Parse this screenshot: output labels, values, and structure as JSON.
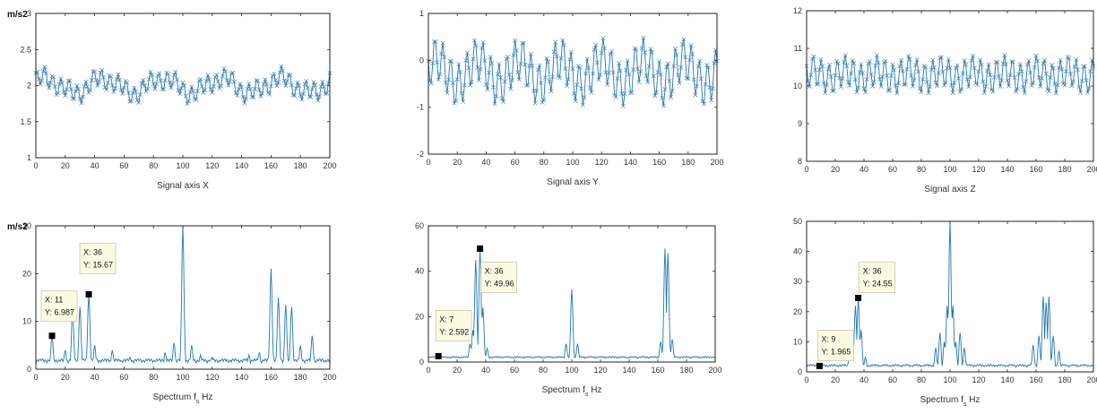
{
  "figure": {
    "line_color": "#1f77b4",
    "marker_color": "#4a86b8"
  },
  "chart_data": [
    {
      "id": "signal-x",
      "type": "line",
      "marker": "x",
      "xlabel": "Signal axis X",
      "ylabel": "m/s2",
      "xlim": [
        0,
        200
      ],
      "ylim": [
        1,
        3
      ],
      "xticks": [
        0,
        20,
        40,
        60,
        80,
        100,
        120,
        140,
        160,
        180,
        200
      ],
      "yticks": [
        1,
        1.5,
        2,
        2.5,
        3
      ],
      "ytick_labels": [
        "1",
        "1.5",
        "2",
        "2.5",
        "3"
      ],
      "signal": {
        "n": 201,
        "mean": 2.0,
        "components": [
          [
            0.05,
            11,
            0.2
          ],
          [
            0.12,
            36,
            1.1
          ],
          [
            0.48,
            100,
            0
          ],
          [
            0.1,
            5,
            0.6
          ]
        ]
      },
      "datatips": []
    },
    {
      "id": "signal-y",
      "type": "line",
      "marker": "x",
      "xlabel": "Signal axis Y",
      "ylabel": "",
      "xlim": [
        0,
        200
      ],
      "ylim": [
        -2,
        1
      ],
      "xticks": [
        0,
        20,
        40,
        60,
        80,
        100,
        120,
        140,
        160,
        180,
        200
      ],
      "yticks": [
        -2,
        -1,
        0,
        1
      ],
      "ytick_labels": [
        "-2",
        "-1",
        "0",
        "1"
      ],
      "signal": {
        "n": 201,
        "mean": -0.25,
        "components": [
          [
            0.45,
            36,
            2.8
          ],
          [
            0.5,
            100,
            0
          ],
          [
            0.28,
            7,
            0.3
          ]
        ]
      },
      "datatips": []
    },
    {
      "id": "signal-z",
      "type": "line",
      "marker": "x",
      "xlabel": "Signal axis Z",
      "ylabel": "",
      "xlim": [
        0,
        200
      ],
      "ylim": [
        8,
        12
      ],
      "xticks": [
        0,
        20,
        40,
        60,
        80,
        100,
        120,
        140,
        160,
        180,
        200
      ],
      "yticks": [
        8,
        9,
        10,
        11,
        12
      ],
      "ytick_labels": [
        "8",
        "9",
        "10",
        "11",
        "12"
      ],
      "signal": {
        "n": 201,
        "mean": 10.3,
        "components": [
          [
            0.4,
            36,
            2.6
          ],
          [
            0.42,
            100,
            0
          ],
          [
            0.12,
            9,
            0.2
          ]
        ]
      },
      "datatips": []
    },
    {
      "id": "spectrum-x",
      "type": "line",
      "marker": "",
      "xlabel": "Spectrum f",
      "xlabel_sub": "s",
      "xlabel_unit": "Hz",
      "ylabel": "m/s2",
      "xlim": [
        0,
        200
      ],
      "ylim": [
        0,
        30
      ],
      "xticks": [
        0,
        20,
        40,
        60,
        80,
        100,
        120,
        140,
        160,
        180,
        200
      ],
      "yticks": [
        0,
        10,
        20,
        30
      ],
      "ytick_labels": [
        "0",
        "10",
        "20",
        "30"
      ],
      "spectrum": {
        "base": 1.2,
        "peaks": [
          [
            11,
            6.987
          ],
          [
            20,
            4
          ],
          [
            25,
            12.5
          ],
          [
            30,
            13
          ],
          [
            36,
            15.67
          ],
          [
            40,
            5
          ],
          [
            52,
            4
          ],
          [
            64,
            2.5
          ],
          [
            88,
            3.5
          ],
          [
            94,
            5.5
          ],
          [
            100,
            30
          ],
          [
            106,
            5
          ],
          [
            112,
            3
          ],
          [
            120,
            2.5
          ],
          [
            130,
            2
          ],
          [
            145,
            3
          ],
          [
            152,
            3.5
          ],
          [
            160,
            21
          ],
          [
            165,
            15
          ],
          [
            170,
            13.5
          ],
          [
            174,
            13
          ],
          [
            180,
            5
          ],
          [
            188,
            7
          ]
        ]
      },
      "datatips": [
        {
          "x": 11,
          "y": 6.987,
          "label_x": "X: 11",
          "label_y": "Y: 6.987"
        },
        {
          "x": 36,
          "y": 15.67,
          "label_x": "X: 36",
          "label_y": "Y: 15.67"
        }
      ]
    },
    {
      "id": "spectrum-y",
      "type": "line",
      "marker": "",
      "xlabel": "Spectrum f",
      "xlabel_sub": "s",
      "xlabel_unit": "Hz",
      "ylabel": "",
      "xlim": [
        0,
        200
      ],
      "ylim": [
        0,
        60
      ],
      "xticks": [
        0,
        20,
        40,
        60,
        80,
        100,
        120,
        140,
        160,
        180,
        200
      ],
      "yticks": [
        0,
        20,
        40,
        60
      ],
      "ytick_labels": [
        "0",
        "20",
        "40",
        "60"
      ],
      "spectrum": {
        "base": 1.5,
        "peaks": [
          [
            7,
            2.592
          ],
          [
            29,
            8
          ],
          [
            31,
            14
          ],
          [
            33,
            45
          ],
          [
            36,
            49.96
          ],
          [
            38,
            24
          ],
          [
            41,
            6
          ],
          [
            96,
            8
          ],
          [
            100,
            32
          ],
          [
            104,
            8
          ],
          [
            162,
            9
          ],
          [
            165,
            50
          ],
          [
            167,
            48
          ],
          [
            170,
            10
          ]
        ]
      },
      "datatips": [
        {
          "x": 7,
          "y": 2.592,
          "label_x": "X: 7",
          "label_y": "Y: 2.592"
        },
        {
          "x": 36,
          "y": 49.96,
          "label_x": "X: 36",
          "label_y": "Y: 49.96"
        }
      ]
    },
    {
      "id": "spectrum-z",
      "type": "line",
      "marker": "",
      "xlabel": "Spectrum f",
      "xlabel_sub": "s",
      "xlabel_unit": "Hz",
      "ylabel": "",
      "xlim": [
        0,
        200
      ],
      "ylim": [
        0,
        50
      ],
      "xticks": [
        0,
        20,
        40,
        60,
        80,
        100,
        120,
        140,
        160,
        180,
        200
      ],
      "yticks": [
        0,
        10,
        20,
        30,
        40,
        50
      ],
      "ytick_labels": [
        "0",
        "10",
        "20",
        "30",
        "40",
        "50"
      ],
      "spectrum": {
        "base": 1.5,
        "peaks": [
          [
            9,
            1.965
          ],
          [
            30,
            7
          ],
          [
            32,
            10
          ],
          [
            34,
            22
          ],
          [
            36,
            24.55
          ],
          [
            38,
            14
          ],
          [
            41,
            5
          ],
          [
            90,
            8
          ],
          [
            93,
            13
          ],
          [
            96,
            10
          ],
          [
            98,
            22
          ],
          [
            100,
            50
          ],
          [
            102,
            22
          ],
          [
            104,
            10
          ],
          [
            107,
            13
          ],
          [
            110,
            8
          ],
          [
            158,
            9
          ],
          [
            162,
            12
          ],
          [
            165,
            25
          ],
          [
            167,
            23
          ],
          [
            169,
            25
          ],
          [
            172,
            12
          ],
          [
            176,
            7
          ]
        ]
      },
      "datatips": [
        {
          "x": 9,
          "y": 1.965,
          "label_x": "X: 9",
          "label_y": "Y: 1.965"
        },
        {
          "x": 36,
          "y": 24.55,
          "label_x": "X: 36",
          "label_y": "Y: 24.55"
        }
      ]
    }
  ]
}
